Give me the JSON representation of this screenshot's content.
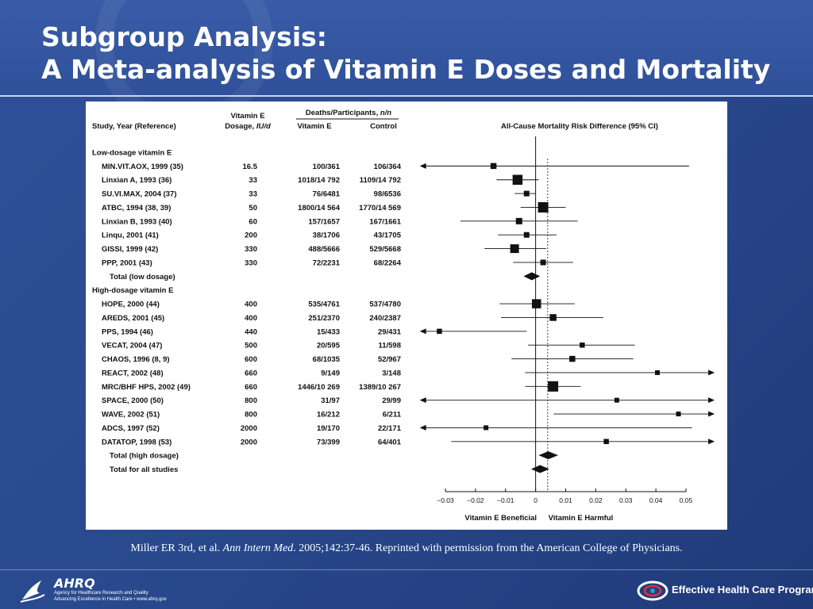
{
  "slide": {
    "title_line1": "Subgroup Analysis:",
    "title_line2": "A Meta-analysis of Vitamin E Doses and Mortality",
    "caption_pre": "Miller ER 3rd, et al. ",
    "caption_journal": "Ann Intern Med",
    "caption_post": ". 2005;142:37-46. Reprinted with permission from the American College of Physicians.",
    "footer_left_logo": "AHRQ",
    "footer_left_sub1": "Agency for Healthcare Research and Quality",
    "footer_left_sub2": "Advancing Excellence in Health Care • www.ahrq.gov",
    "footer_right_text": "Effective Health Care Program",
    "icons": [
      "hhs-eagle-icon",
      "ahrq-logo-icon",
      "ehc-swirl-icon"
    ]
  },
  "chart_data": {
    "type": "forest",
    "headers": {
      "study": "Study, Year (Reference)",
      "dose_line1": "Vitamin E",
      "dose_line2_pre": "Dosage, ",
      "dose_line2_unit": "IU/d",
      "deaths_pre": "Deaths/Participants, ",
      "deaths_unit": "n/n",
      "vitE": "Vitamin E",
      "control": "Control",
      "effect": "All-Cause Mortality Risk Difference (95% CI)"
    },
    "x_ticks": [
      "−0.03",
      "−0.02",
      "−0.01",
      "0",
      "0.01",
      "0.02",
      "0.03",
      "0.04",
      "0.05"
    ],
    "x_tick_values": [
      -0.03,
      -0.02,
      -0.01,
      0,
      0.01,
      0.02,
      0.03,
      0.04,
      0.05
    ],
    "xlim": [
      -0.03,
      0.05
    ],
    "x_label_left": "Vitamin E Beneficial",
    "x_label_right": "Vitamin E Harmful",
    "pooled_reference": 0.004,
    "rows": [
      {
        "kind": "group",
        "label": "Low-dosage vitamin E"
      },
      {
        "kind": "study",
        "label": "MIN.VIT.AOX, 1999 (35)",
        "dose": "16.5",
        "vitE": "100/361",
        "control": "106/364",
        "est": -0.014,
        "lo": -0.038,
        "hi": 0.051,
        "w": 0.5
      },
      {
        "kind": "study",
        "label": "Linxian A, 1993 (36)",
        "dose": "33",
        "vitE": "1018/14 792",
        "control": "1109/14 792",
        "est": -0.006,
        "lo": -0.013,
        "hi": 0.001,
        "w": 1.0
      },
      {
        "kind": "study",
        "label": "SU.VI.MAX, 2004 (37)",
        "dose": "33",
        "vitE": "76/6481",
        "control": "98/6536",
        "est": -0.003,
        "lo": -0.007,
        "hi": 0.0,
        "w": 0.45
      },
      {
        "kind": "study",
        "label": "ATBC, 1994 (38, 39)",
        "dose": "50",
        "vitE": "1800/14 564",
        "control": "1770/14 569",
        "est": 0.0025,
        "lo": -0.005,
        "hi": 0.01,
        "w": 1.05
      },
      {
        "kind": "study",
        "label": "Linxian B, 1993 (40)",
        "dose": "60",
        "vitE": "157/1657",
        "control": "167/1661",
        "est": -0.0055,
        "lo": -0.025,
        "hi": 0.014,
        "w": 0.55
      },
      {
        "kind": "study",
        "label": "Linqu, 2001 (41)",
        "dose": "200",
        "vitE": "38/1706",
        "control": "43/1705",
        "est": -0.003,
        "lo": -0.0125,
        "hi": 0.007,
        "w": 0.45
      },
      {
        "kind": "study",
        "label": "GISSI, 1999 (42)",
        "dose": "330",
        "vitE": "488/5666",
        "control": "529/5668",
        "est": -0.007,
        "lo": -0.017,
        "hi": 0.0035,
        "w": 0.85
      },
      {
        "kind": "study",
        "label": "PPP, 2001 (43)",
        "dose": "330",
        "vitE": "72/2231",
        "control": "68/2264",
        "est": 0.0025,
        "lo": -0.0075,
        "hi": 0.0125,
        "w": 0.45
      },
      {
        "kind": "total",
        "label": "Total (low dosage)",
        "est": -0.0013,
        "lo": -0.004,
        "hi": 0.0015
      },
      {
        "kind": "group",
        "label": "High-dosage vitamin E"
      },
      {
        "kind": "study",
        "label": "HOPE, 2000 (44)",
        "dose": "400",
        "vitE": "535/4761",
        "control": "537/4780",
        "est": 0.0003,
        "lo": -0.012,
        "hi": 0.013,
        "w": 0.9
      },
      {
        "kind": "study",
        "label": "AREDS, 2001 (45)",
        "dose": "400",
        "vitE": "251/2370",
        "control": "240/2387",
        "est": 0.0058,
        "lo": -0.0115,
        "hi": 0.0225,
        "w": 0.6
      },
      {
        "kind": "study",
        "label": "PPS, 1994 (46)",
        "dose": "440",
        "vitE": "15/433",
        "control": "29/431",
        "est": -0.032,
        "lo": -0.038,
        "hi": -0.003,
        "w": 0.4
      },
      {
        "kind": "study",
        "label": "VECAT, 2004 (47)",
        "dose": "500",
        "vitE": "20/595",
        "control": "11/598",
        "est": 0.0155,
        "lo": -0.0025,
        "hi": 0.033,
        "w": 0.4
      },
      {
        "kind": "study",
        "label": "CHAOS, 1996 (8, 9)",
        "dose": "600",
        "vitE": "68/1035",
        "control": "52/967",
        "est": 0.0122,
        "lo": -0.008,
        "hi": 0.0325,
        "w": 0.5
      },
      {
        "kind": "study",
        "label": "REACT, 2002 (48)",
        "dose": "660",
        "vitE": "9/149",
        "control": "3/148",
        "est": 0.0405,
        "lo": -0.0035,
        "hi": 0.059,
        "w": 0.35
      },
      {
        "kind": "study",
        "label": "MRC/BHF HPS, 2002 (49)",
        "dose": "660",
        "vitE": "1446/10 269",
        "control": "1389/10 267",
        "est": 0.0058,
        "lo": -0.0035,
        "hi": 0.015,
        "w": 1.05
      },
      {
        "kind": "study",
        "label": "SPACE, 2000 (50)",
        "dose": "800",
        "vitE": "31/97",
        "control": "29/99",
        "est": 0.027,
        "lo": -0.038,
        "hi": 0.059,
        "w": 0.35
      },
      {
        "kind": "study",
        "label": "WAVE, 2002 (51)",
        "dose": "800",
        "vitE": "16/212",
        "control": "6/211",
        "est": 0.0475,
        "lo": 0.006,
        "hi": 0.059,
        "w": 0.35
      },
      {
        "kind": "study",
        "label": "ADCS, 1997 (52)",
        "dose": "2000",
        "vitE": "19/170",
        "control": "22/171",
        "est": -0.0165,
        "lo": -0.038,
        "hi": 0.052,
        "w": 0.35
      },
      {
        "kind": "study",
        "label": "DATATOP, 1998 (53)",
        "dose": "2000",
        "vitE": "73/399",
        "control": "64/401",
        "est": 0.0235,
        "lo": -0.028,
        "hi": 0.059,
        "w": 0.4
      },
      {
        "kind": "total",
        "label": "Total (high dosage)",
        "est": 0.0042,
        "lo": 0.001,
        "hi": 0.0075
      },
      {
        "kind": "total",
        "label": "Total for all studies",
        "est": 0.0015,
        "lo": -0.0015,
        "hi": 0.0045
      }
    ]
  }
}
